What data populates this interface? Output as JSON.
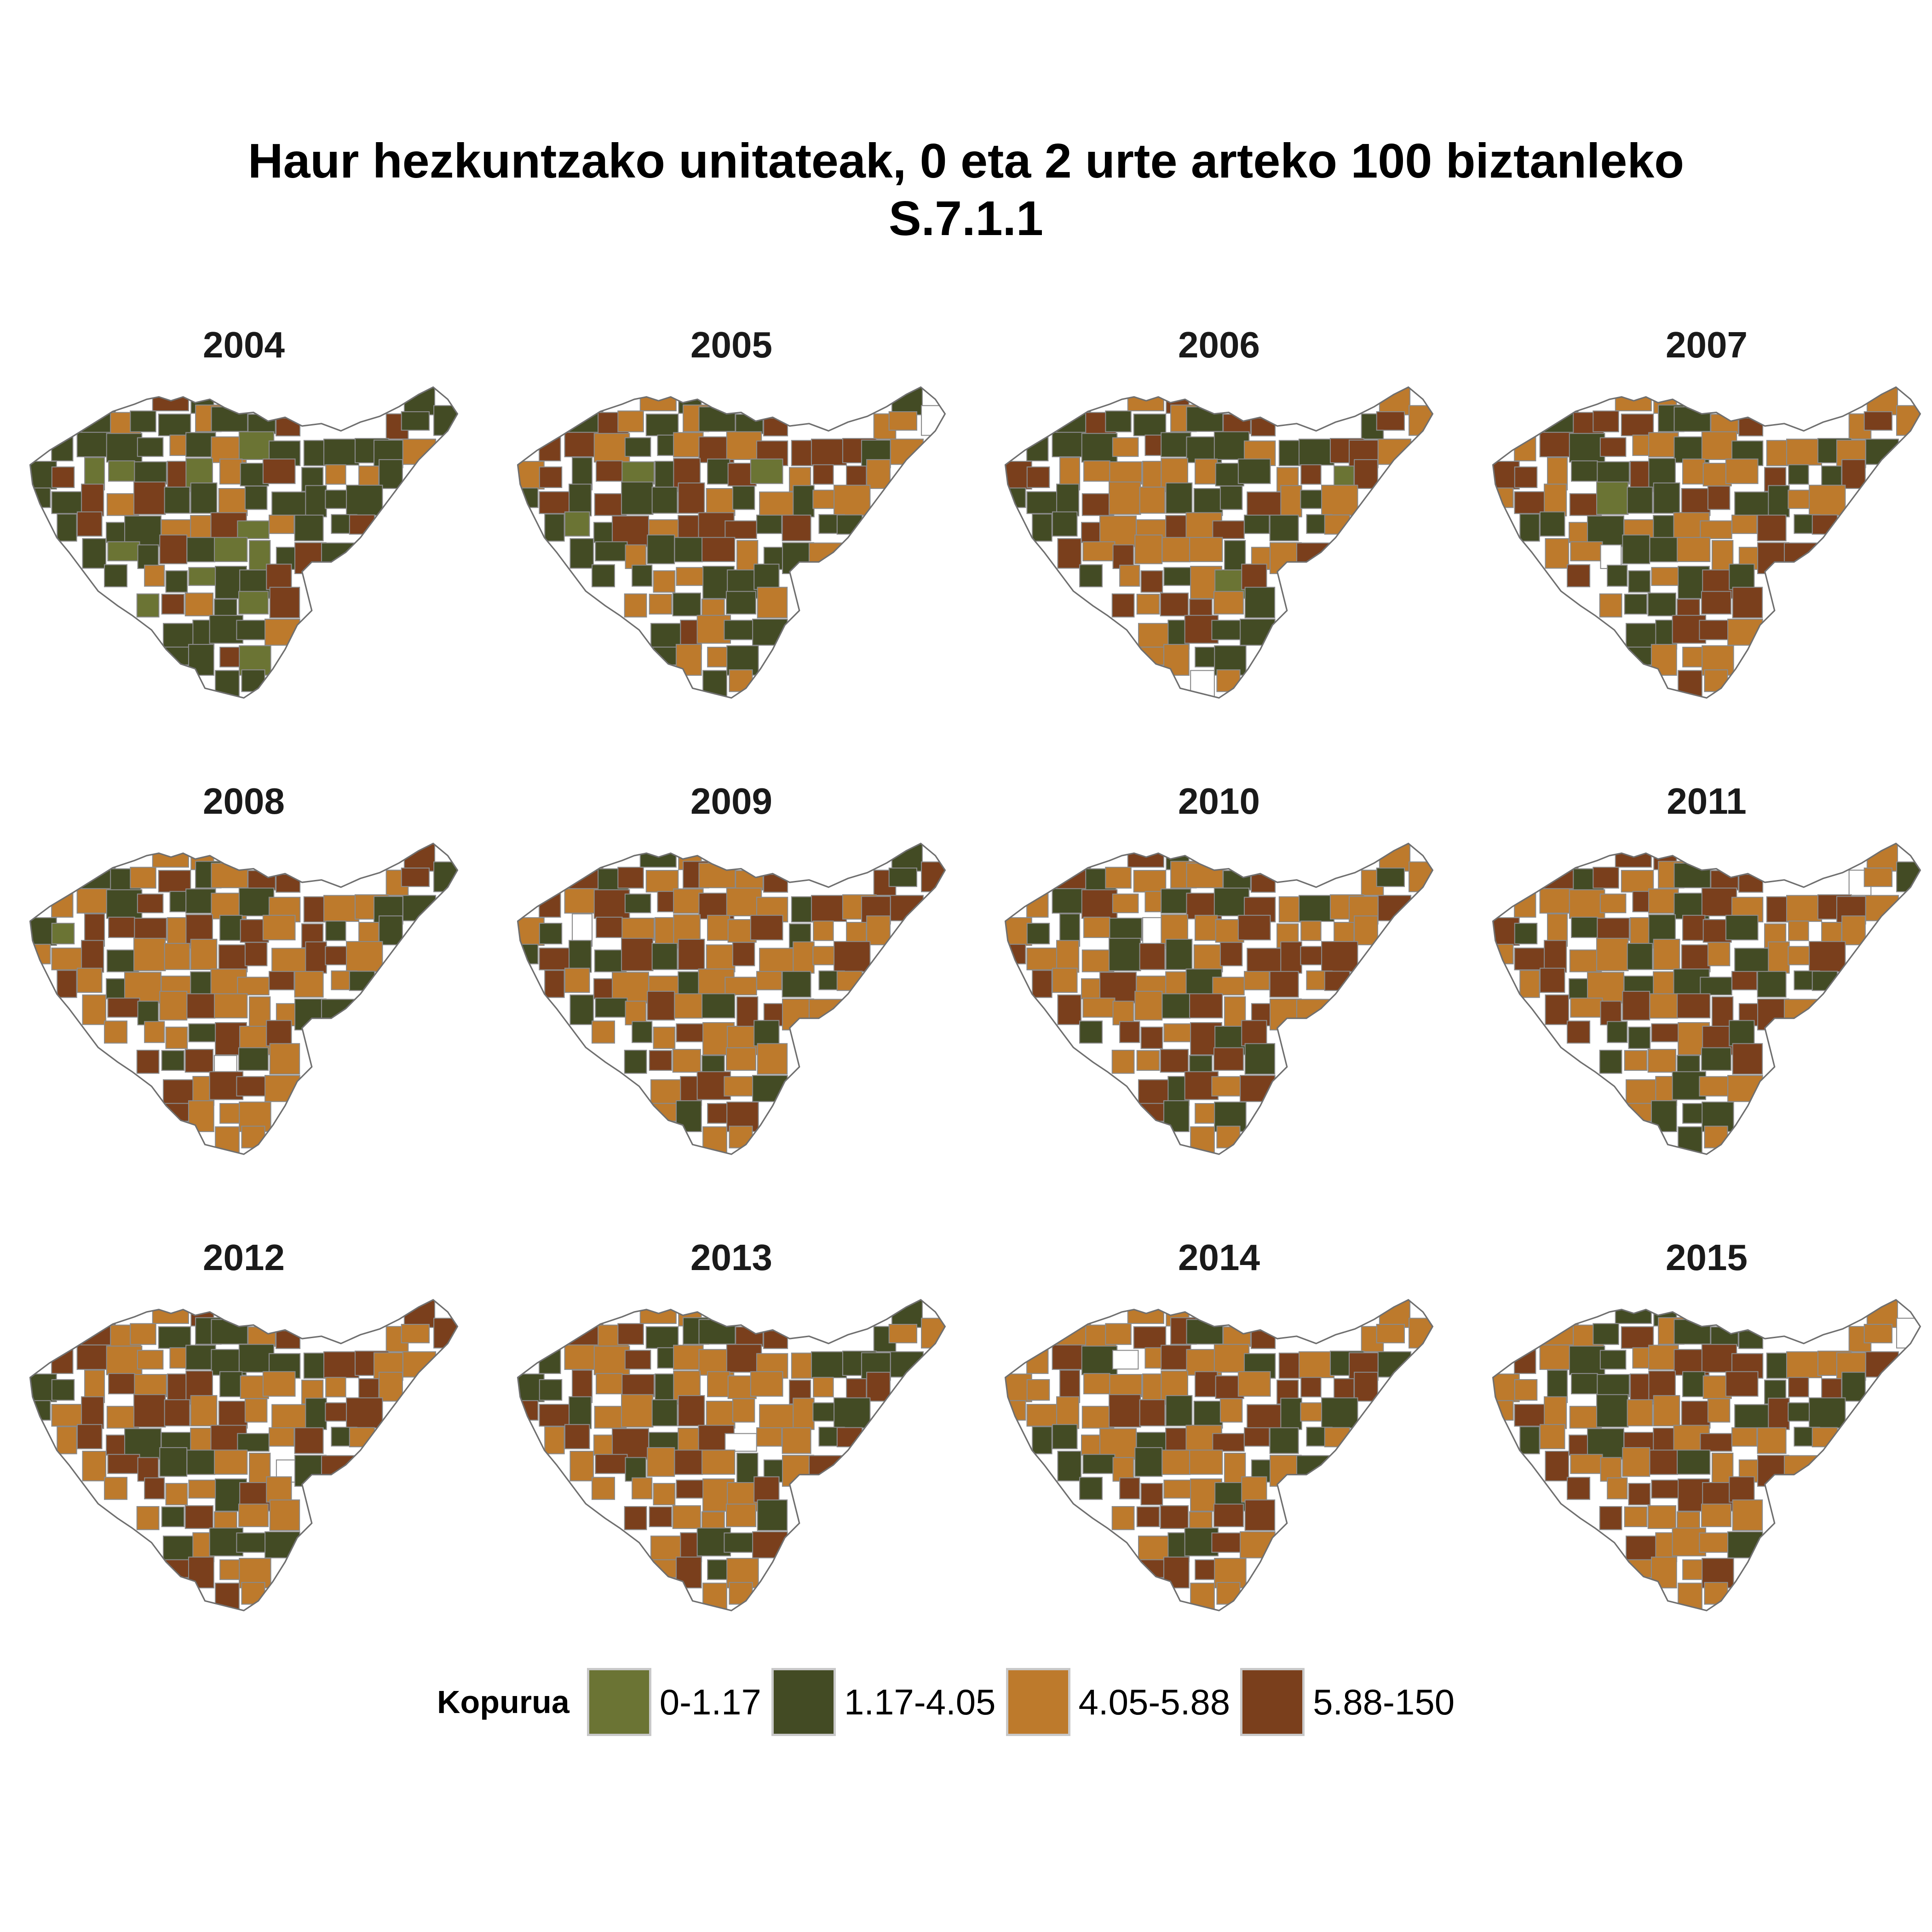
{
  "title": {
    "line1": "Haur hezkuntzako unitateak, 0 eta 2 urte arteko 100 biztanleko",
    "line2": "S.7.1.1"
  },
  "legend": {
    "title": "Kopurua",
    "items": [
      {
        "label": "0-1.17",
        "color": "#6b7434"
      },
      {
        "label": "1.17-4.05",
        "color": "#434b24"
      },
      {
        "label": "4.05-5.88",
        "color": "#bd7a2c"
      },
      {
        "label": "5.88-150",
        "color": "#7a3f1c"
      }
    ]
  },
  "panels": [
    {
      "year": "2004",
      "counts": [
        12,
        55,
        16,
        17
      ]
    },
    {
      "year": "2005",
      "counts": [
        3,
        42,
        30,
        25
      ]
    },
    {
      "year": "2006",
      "counts": [
        2,
        36,
        36,
        26
      ]
    },
    {
      "year": "2007",
      "counts": [
        1,
        33,
        38,
        28
      ]
    },
    {
      "year": "2008",
      "counts": [
        1,
        24,
        45,
        30
      ]
    },
    {
      "year": "2009",
      "counts": [
        0,
        24,
        45,
        31
      ]
    },
    {
      "year": "2010",
      "counts": [
        0,
        22,
        46,
        32
      ]
    },
    {
      "year": "2011",
      "counts": [
        0,
        28,
        40,
        32
      ]
    },
    {
      "year": "2012",
      "counts": [
        0,
        26,
        42,
        32
      ]
    },
    {
      "year": "2013",
      "counts": [
        0,
        27,
        45,
        28
      ]
    },
    {
      "year": "2014",
      "counts": [
        0,
        23,
        47,
        30
      ]
    },
    {
      "year": "2015",
      "counts": [
        0,
        24,
        46,
        30
      ]
    }
  ]
}
